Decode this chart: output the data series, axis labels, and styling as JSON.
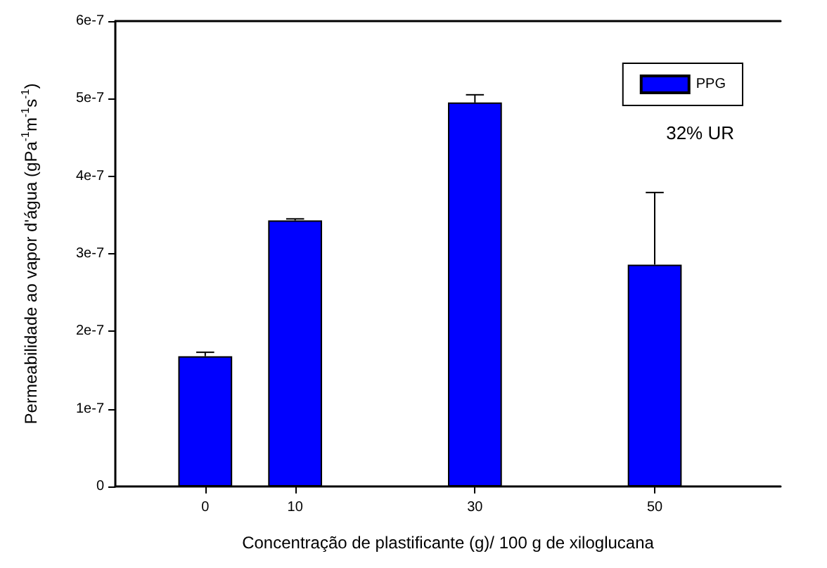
{
  "chart_data": {
    "type": "bar",
    "xlabel": "Concentração de plastificante (g)/ 100 g de xiloglucana",
    "ylabel": "Permeabilidade ao vapor d'água (gPa$^{-1}$m$^{-1}$s$^{-1}$)",
    "x": [
      0,
      10,
      30,
      50
    ],
    "series": [
      {
        "name": "PPG",
        "color": "#0000ff",
        "values": [
          1.68e-07,
          3.43e-07,
          4.95e-07,
          2.86e-07
        ],
        "errors": [
          [
            1.68e-07,
            1.73e-07
          ],
          [
            3.43e-07,
            3.45e-07
          ],
          [
            4.95e-07,
            5.05e-07
          ],
          [
            2.86e-07,
            3.79e-07
          ]
        ]
      }
    ],
    "xlim": [
      -10,
      64
    ],
    "xticks": [
      0,
      10,
      30,
      50
    ],
    "ylim": [
      0,
      6e-07
    ],
    "yticks": [
      {
        "value": 0,
        "label": "0"
      },
      {
        "value": 1e-07,
        "label": "1e-7"
      },
      {
        "value": 2e-07,
        "label": "2e-7"
      },
      {
        "value": 3e-07,
        "label": "3e-7"
      },
      {
        "value": 4e-07,
        "label": "4e-7"
      },
      {
        "value": 5e-07,
        "label": "5e-7"
      },
      {
        "value": 6e-07,
        "label": "6e-7"
      }
    ],
    "annotations": [
      "32% UR"
    ],
    "legend": "top right"
  }
}
